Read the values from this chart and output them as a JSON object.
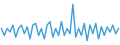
{
  "values": [
    0.5,
    -1.5,
    0.5,
    -0.5,
    1.5,
    -2.0,
    0.5,
    1.5,
    -1.0,
    1.0,
    -2.5,
    1.5,
    2.0,
    -1.5,
    0.5,
    -2.5,
    1.5,
    2.5,
    -2.0,
    0.5,
    -1.5,
    2.5,
    -1.5,
    0.5,
    -1.0,
    7.5,
    -2.0,
    0.5,
    -1.5,
    2.0,
    -3.0,
    1.5,
    -1.0,
    2.0,
    -2.5,
    1.0,
    -1.5,
    1.0,
    -0.5,
    1.5,
    -1.0,
    0.5
  ],
  "line_color": "#3c9fd4",
  "background_color": "#ffffff",
  "linewidth": 1.0
}
